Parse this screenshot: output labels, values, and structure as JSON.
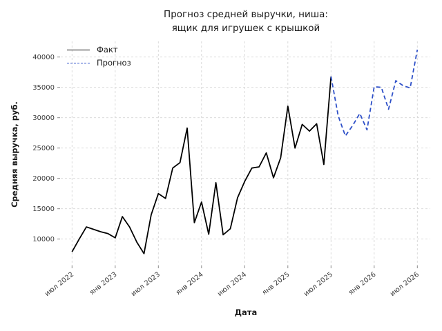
{
  "title_line1": "Прогноз средней выручки, ниша:",
  "title_line2": "ящик для игрушек с крышкой",
  "legend": {
    "fact_label": "Факт",
    "forecast_label": "Прогноз"
  },
  "colors": {
    "fact_line": "#000000",
    "forecast_line": "#2d4fc8",
    "grid": "#d6d6d6",
    "tick_text": "#3d3d3d",
    "text": "#1a1a1a"
  },
  "chart_data": {
    "type": "line",
    "title": "Прогноз средней выручки, ниша: ящик для игрушек с крышкой",
    "xlabel": "Дата",
    "ylabel": "Средняя выручка, руб.",
    "grid": true,
    "legend_position": "upper left",
    "x_tick_labels": [
      "июл 2022",
      "янв 2023",
      "июл 2023",
      "янв 2024",
      "июл 2024",
      "янв 2025",
      "июл 2025",
      "янв 2026",
      "июл 2026"
    ],
    "x_tick_month_indices": [
      0,
      6,
      12,
      18,
      24,
      30,
      36,
      42,
      48
    ],
    "y_ticks": [
      10000,
      15000,
      20000,
      25000,
      30000,
      35000,
      40000
    ],
    "ylim": [
      5600,
      42600
    ],
    "series": [
      {
        "name": "Факт",
        "style": "solid",
        "color": "#000000",
        "start_month_index": 0,
        "months": [
          "2022-07",
          "2022-08",
          "2022-09",
          "2022-10",
          "2022-11",
          "2022-12",
          "2023-01",
          "2023-02",
          "2023-03",
          "2023-04",
          "2023-05",
          "2023-06",
          "2023-07",
          "2023-08",
          "2023-09",
          "2023-10",
          "2023-11",
          "2023-12",
          "2024-01",
          "2024-02",
          "2024-03",
          "2024-04",
          "2024-05",
          "2024-06",
          "2024-07",
          "2024-08",
          "2024-09",
          "2024-10",
          "2024-11",
          "2024-12",
          "2025-01",
          "2025-02",
          "2025-03",
          "2025-04",
          "2025-05",
          "2025-06",
          "2025-07"
        ],
        "values": [
          7900,
          10000,
          12000,
          11600,
          11200,
          10900,
          10200,
          13700,
          12000,
          9500,
          7600,
          14000,
          17500,
          16700,
          21700,
          22600,
          28300,
          12700,
          16100,
          10800,
          19300,
          10700,
          11700,
          16800,
          19500,
          21700,
          21900,
          24200,
          20100,
          23400,
          31900,
          25000,
          28900,
          27800,
          29000,
          22300,
          36800
        ]
      },
      {
        "name": "Прогноз",
        "style": "dashed",
        "color": "#2d4fc8",
        "start_month_index": 36,
        "months": [
          "2025-07",
          "2025-08",
          "2025-09",
          "2025-10",
          "2025-11",
          "2025-12",
          "2026-01",
          "2026-02",
          "2026-03",
          "2026-04",
          "2026-05",
          "2026-06",
          "2026-07"
        ],
        "values": [
          36800,
          30300,
          27000,
          28700,
          30700,
          28000,
          35100,
          35000,
          31400,
          36100,
          35300,
          34900,
          41200
        ]
      }
    ]
  }
}
